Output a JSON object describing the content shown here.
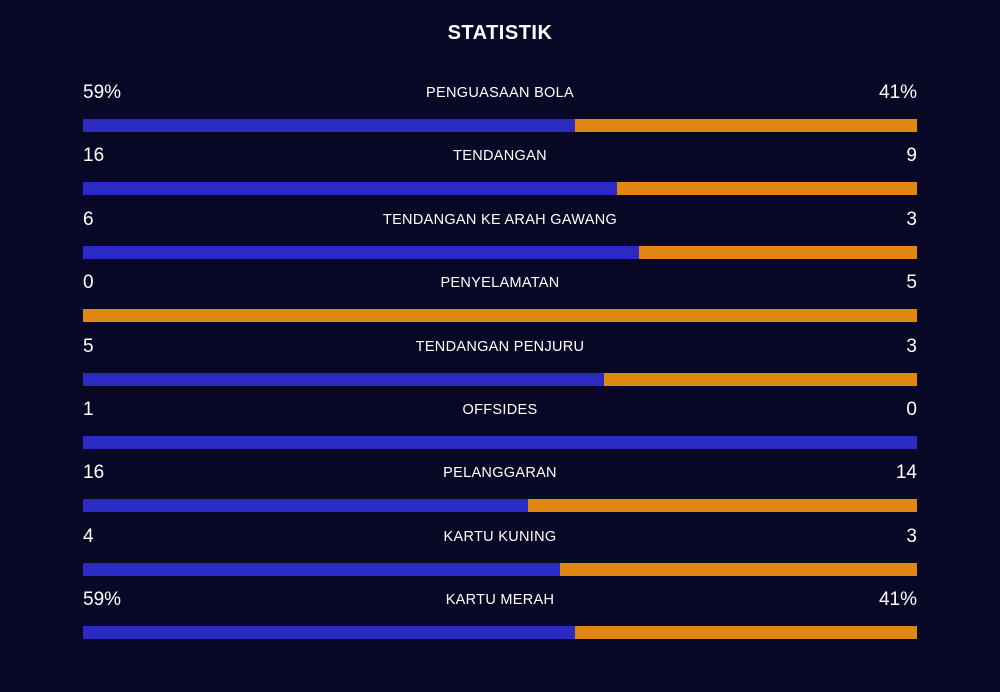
{
  "title": "STATISTIK",
  "colors": {
    "background": "#080826",
    "home": "#2b2bc4",
    "away": "#e08613",
    "text": "#ffffff"
  },
  "stats": [
    {
      "label": "PENGUASAAN BOLA",
      "home": "59%",
      "away": "41%",
      "home_share": 0.59
    },
    {
      "label": "TENDANGAN",
      "home": "16",
      "away": "9",
      "home_share": 0.64
    },
    {
      "label": "TENDANGAN KE ARAH GAWANG",
      "home": "6",
      "away": "3",
      "home_share": 0.6667
    },
    {
      "label": "PENYELAMATAN",
      "home": "0",
      "away": "5",
      "home_share": 0
    },
    {
      "label": "TENDANGAN PENJURU",
      "home": "5",
      "away": "3",
      "home_share": 0.625
    },
    {
      "label": "OFFSIDES",
      "home": "1",
      "away": "0",
      "home_share": 1
    },
    {
      "label": "PELANGGARAN",
      "home": "16",
      "away": "14",
      "home_share": 0.5333
    },
    {
      "label": "KARTU KUNING",
      "home": "4",
      "away": "3",
      "home_share": 0.5714
    },
    {
      "label": "KARTU MERAH",
      "home": "59%",
      "away": "41%",
      "home_share": 0.59
    }
  ]
}
